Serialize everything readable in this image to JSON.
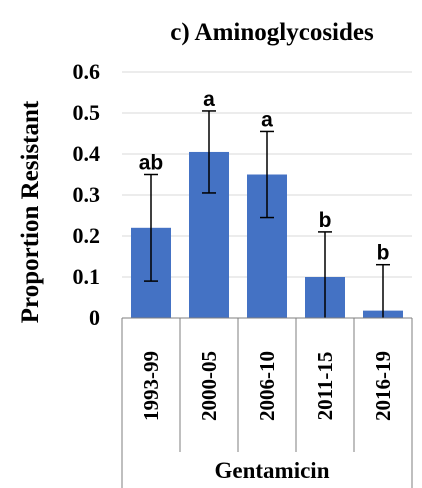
{
  "chart_data": {
    "type": "bar",
    "title": "c) Aminoglycosides",
    "ylabel": "Proportion Resistant",
    "xlabel": "Gentamicin",
    "categories": [
      "1993-99",
      "2000-05",
      "2006-10",
      "2011-15",
      "2016-19"
    ],
    "values": [
      0.22,
      0.405,
      0.35,
      0.1,
      0.018
    ],
    "error_upper": [
      0.35,
      0.505,
      0.455,
      0.21,
      0.13
    ],
    "error_lower": [
      0.09,
      0.305,
      0.245,
      0.0,
      0.0
    ],
    "significance_labels": [
      "ab",
      "a",
      "a",
      "b",
      "b"
    ],
    "ylim": [
      0,
      0.6
    ],
    "yticks": [
      0,
      0.1,
      0.2,
      0.3,
      0.4,
      0.5,
      0.6
    ],
    "ytick_labels": [
      "0",
      "0.1",
      "0.2",
      "0.3",
      "0.4",
      "0.5",
      "0.6"
    ],
    "grid": true,
    "bar_color": "#4472c4"
  }
}
